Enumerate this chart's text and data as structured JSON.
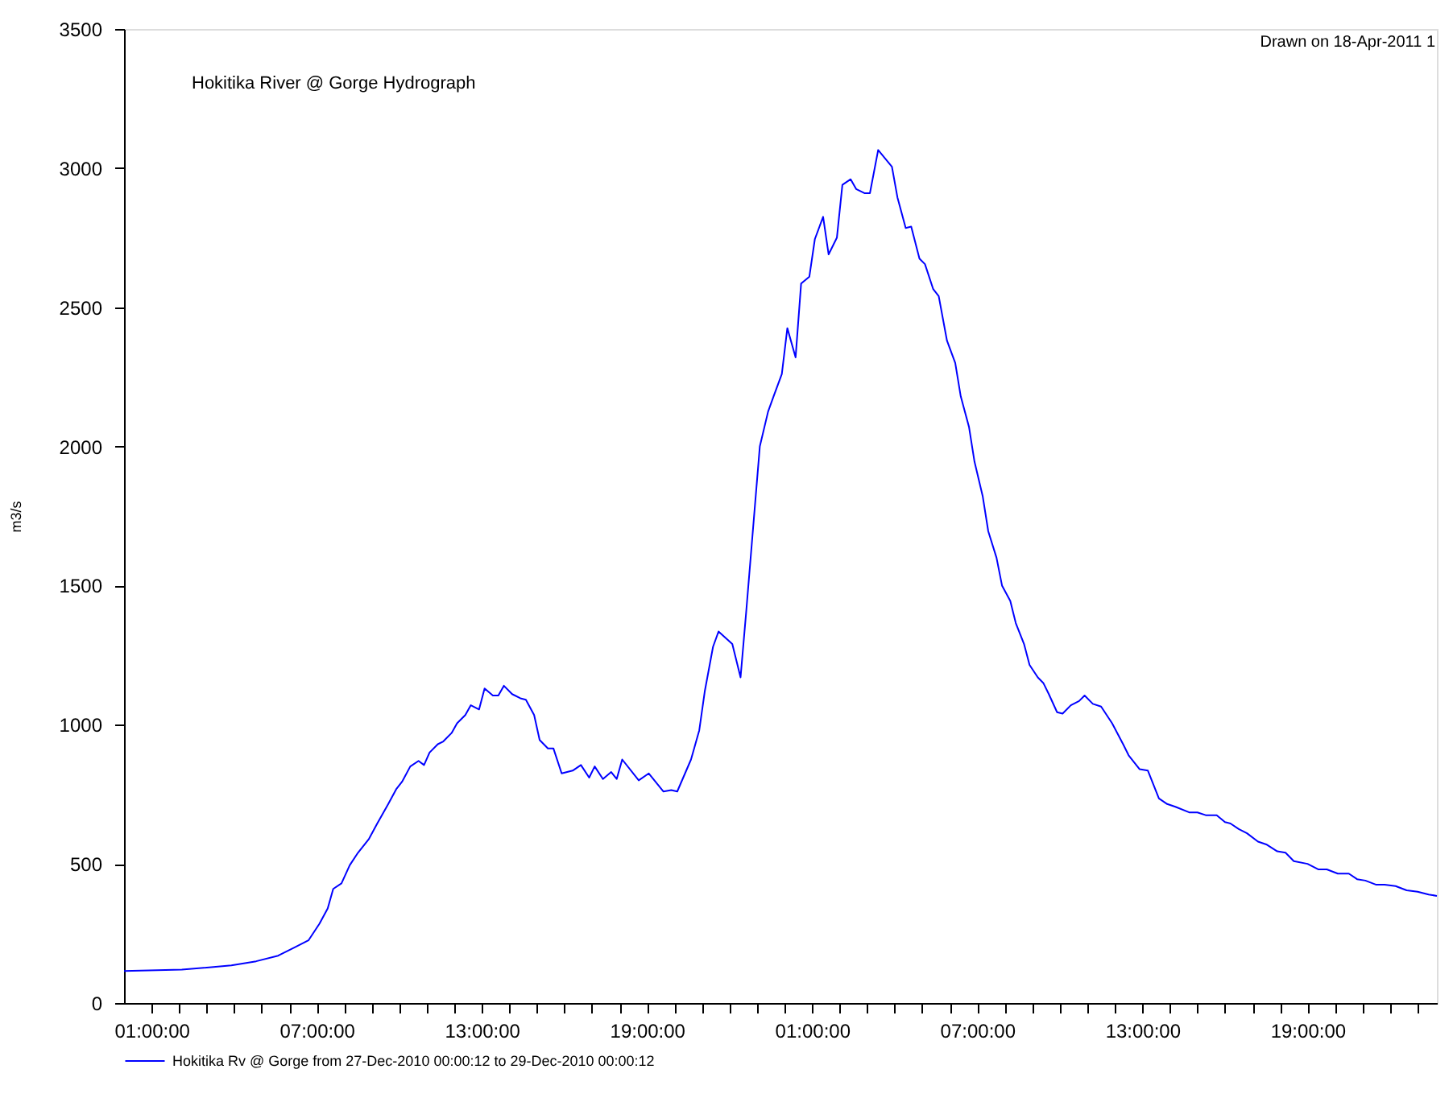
{
  "chart_data": {
    "type": "line",
    "title": "Hokitika River @ Gorge Hydrograph",
    "ylabel": "m3/s",
    "annotations": [
      "Drawn on 18-Apr-2011 1"
    ],
    "xlim": [
      "2010-12-27T00:00",
      "2010-12-28T23:42"
    ],
    "ylim": [
      0,
      3500
    ],
    "xticks": [
      {
        "value": "2010-12-27T01:00",
        "label": "01:00:00"
      },
      {
        "value": "2010-12-27T02:00",
        "label": null
      },
      {
        "value": "2010-12-27T03:00",
        "label": null
      },
      {
        "value": "2010-12-27T04:00",
        "label": null
      },
      {
        "value": "2010-12-27T05:00",
        "label": null
      },
      {
        "value": "2010-12-27T06:00",
        "label": null
      },
      {
        "value": "2010-12-27T07:00",
        "label": "07:00:00"
      },
      {
        "value": "2010-12-27T08:00",
        "label": null
      },
      {
        "value": "2010-12-27T09:00",
        "label": null
      },
      {
        "value": "2010-12-27T10:00",
        "label": null
      },
      {
        "value": "2010-12-27T11:00",
        "label": null
      },
      {
        "value": "2010-12-27T12:00",
        "label": null
      },
      {
        "value": "2010-12-27T13:00",
        "label": "13:00:00"
      },
      {
        "value": "2010-12-27T14:00",
        "label": null
      },
      {
        "value": "2010-12-27T15:00",
        "label": null
      },
      {
        "value": "2010-12-27T16:00",
        "label": null
      },
      {
        "value": "2010-12-27T17:00",
        "label": null
      },
      {
        "value": "2010-12-27T18:00",
        "label": null
      },
      {
        "value": "2010-12-27T19:00",
        "label": "19:00:00"
      },
      {
        "value": "2010-12-27T20:00",
        "label": null
      },
      {
        "value": "2010-12-27T21:00",
        "label": null
      },
      {
        "value": "2010-12-27T22:00",
        "label": null
      },
      {
        "value": "2010-12-27T23:00",
        "label": null
      },
      {
        "value": "2010-12-28T00:00",
        "label": null
      },
      {
        "value": "2010-12-28T01:00",
        "label": "01:00:00"
      },
      {
        "value": "2010-12-28T02:00",
        "label": null
      },
      {
        "value": "2010-12-28T03:00",
        "label": null
      },
      {
        "value": "2010-12-28T04:00",
        "label": null
      },
      {
        "value": "2010-12-28T05:00",
        "label": null
      },
      {
        "value": "2010-12-28T06:00",
        "label": null
      },
      {
        "value": "2010-12-28T07:00",
        "label": "07:00:00"
      },
      {
        "value": "2010-12-28T08:00",
        "label": null
      },
      {
        "value": "2010-12-28T09:00",
        "label": null
      },
      {
        "value": "2010-12-28T10:00",
        "label": null
      },
      {
        "value": "2010-12-28T11:00",
        "label": null
      },
      {
        "value": "2010-12-28T12:00",
        "label": null
      },
      {
        "value": "2010-12-28T13:00",
        "label": "13:00:00"
      },
      {
        "value": "2010-12-28T14:00",
        "label": null
      },
      {
        "value": "2010-12-28T15:00",
        "label": null
      },
      {
        "value": "2010-12-28T16:00",
        "label": null
      },
      {
        "value": "2010-12-28T17:00",
        "label": null
      },
      {
        "value": "2010-12-28T18:00",
        "label": null
      },
      {
        "value": "2010-12-28T19:00",
        "label": "19:00:00"
      },
      {
        "value": "2010-12-28T20:00",
        "label": null
      },
      {
        "value": "2010-12-28T21:00",
        "label": null
      },
      {
        "value": "2010-12-28T22:00",
        "label": null
      },
      {
        "value": "2010-12-28T23:00",
        "label": null
      }
    ],
    "yticks": [
      0,
      500,
      1000,
      1500,
      2000,
      2500,
      3000,
      3500
    ],
    "grid": false,
    "legend": "bottom",
    "marker": "none",
    "line_style": "solid",
    "series": [
      {
        "name": "Hokitika Rv @ Gorge from 27-Dec-2010 00:00:12 to 29-Dec-2010 00:00:12",
        "color": "#0000ff",
        "x": [
          "2010-12-27T00:00",
          "2010-12-27T02:06",
          "2010-12-27T03:54",
          "2010-12-27T04:48",
          "2010-12-27T05:36",
          "2010-12-27T06:12",
          "2010-12-27T06:42",
          "2010-12-27T07:06",
          "2010-12-27T07:24",
          "2010-12-27T07:36",
          "2010-12-27T07:54",
          "2010-12-27T08:12",
          "2010-12-27T08:30",
          "2010-12-27T08:54",
          "2010-12-27T09:12",
          "2010-12-27T09:36",
          "2010-12-27T09:54",
          "2010-12-27T10:06",
          "2010-12-27T10:24",
          "2010-12-27T10:42",
          "2010-12-27T10:54",
          "2010-12-27T11:06",
          "2010-12-27T11:24",
          "2010-12-27T11:36",
          "2010-12-27T11:54",
          "2010-12-27T12:06",
          "2010-12-27T12:24",
          "2010-12-27T12:36",
          "2010-12-27T12:54",
          "2010-12-27T13:06",
          "2010-12-27T13:24",
          "2010-12-27T13:36",
          "2010-12-27T13:48",
          "2010-12-27T14:06",
          "2010-12-27T14:24",
          "2010-12-27T14:36",
          "2010-12-27T14:54",
          "2010-12-27T15:06",
          "2010-12-27T15:24",
          "2010-12-27T15:36",
          "2010-12-27T15:54",
          "2010-12-27T16:18",
          "2010-12-27T16:36",
          "2010-12-27T16:54",
          "2010-12-27T17:06",
          "2010-12-27T17:24",
          "2010-12-27T17:42",
          "2010-12-27T17:54",
          "2010-12-27T18:06",
          "2010-12-27T18:42",
          "2010-12-27T19:04",
          "2010-12-27T19:36",
          "2010-12-27T19:53",
          "2010-12-27T20:06",
          "2010-12-27T20:36",
          "2010-12-27T20:54",
          "2010-12-27T21:06",
          "2010-12-27T21:24",
          "2010-12-27T21:36",
          "2010-12-27T22:06",
          "2010-12-27T22:24",
          "2010-12-27T22:36",
          "2010-12-27T22:54",
          "2010-12-27T23:06",
          "2010-12-27T23:24",
          "2010-12-27T23:36",
          "2010-12-27T23:54",
          "2010-12-28T00:06",
          "2010-12-28T00:24",
          "2010-12-28T00:36",
          "2010-12-28T00:54",
          "2010-12-28T01:06",
          "2010-12-28T01:24",
          "2010-12-28T01:36",
          "2010-12-28T01:54",
          "2010-12-28T02:06",
          "2010-12-28T02:24",
          "2010-12-28T02:36",
          "2010-12-28T02:54",
          "2010-12-28T03:06",
          "2010-12-28T03:24",
          "2010-12-28T03:54",
          "2010-12-28T04:06",
          "2010-12-28T04:24",
          "2010-12-28T04:36",
          "2010-12-28T04:54",
          "2010-12-28T05:06",
          "2010-12-28T05:24",
          "2010-12-28T05:36",
          "2010-12-28T05:54",
          "2010-12-28T06:12",
          "2010-12-28T06:24",
          "2010-12-28T06:42",
          "2010-12-28T06:54",
          "2010-12-28T07:12",
          "2010-12-28T07:24",
          "2010-12-28T07:42",
          "2010-12-28T07:54",
          "2010-12-28T08:12",
          "2010-12-28T08:24",
          "2010-12-28T08:42",
          "2010-12-28T08:54",
          "2010-12-28T09:12",
          "2010-12-28T09:24",
          "2010-12-28T09:36",
          "2010-12-28T09:54",
          "2010-12-28T10:06",
          "2010-12-28T10:24",
          "2010-12-28T10:42",
          "2010-12-28T10:54",
          "2010-12-28T11:12",
          "2010-12-28T11:30",
          "2010-12-28T11:54",
          "2010-12-28T12:18",
          "2010-12-28T12:30",
          "2010-12-28T12:54",
          "2010-12-28T13:12",
          "2010-12-28T13:36",
          "2010-12-28T13:54",
          "2010-12-28T14:12",
          "2010-12-28T14:42",
          "2010-12-28T15:00",
          "2010-12-28T15:18",
          "2010-12-28T15:42",
          "2010-12-28T16:00",
          "2010-12-28T16:12",
          "2010-12-28T16:30",
          "2010-12-28T16:48",
          "2010-12-28T17:12",
          "2010-12-28T17:30",
          "2010-12-28T17:54",
          "2010-12-28T18:12",
          "2010-12-28T18:30",
          "2010-12-28T19:00",
          "2010-12-28T19:24",
          "2010-12-28T19:42",
          "2010-12-28T20:06",
          "2010-12-28T20:30",
          "2010-12-28T20:48",
          "2010-12-28T21:06",
          "2010-12-28T21:30",
          "2010-12-28T21:48",
          "2010-12-28T22:12",
          "2010-12-28T22:36",
          "2010-12-28T23:00",
          "2010-12-28T23:24",
          "2010-12-28T23:42"
        ],
        "values": [
          115,
          120,
          135,
          150,
          170,
          200,
          225,
          285,
          340,
          410,
          430,
          495,
          540,
          590,
          645,
          715,
          770,
          795,
          850,
          870,
          855,
          900,
          930,
          940,
          970,
          1005,
          1035,
          1070,
          1055,
          1130,
          1105,
          1105,
          1140,
          1110,
          1095,
          1090,
          1035,
          945,
          915,
          915,
          825,
          835,
          855,
          810,
          850,
          805,
          830,
          805,
          875,
          800,
          825,
          760,
          765,
          760,
          875,
          980,
          1120,
          1280,
          1335,
          1290,
          1170,
          1400,
          1760,
          2000,
          2125,
          2180,
          2260,
          2425,
          2320,
          2585,
          2610,
          2745,
          2825,
          2690,
          2750,
          2940,
          2960,
          2925,
          2910,
          2910,
          3065,
          3005,
          2895,
          2785,
          2790,
          2675,
          2655,
          2565,
          2540,
          2380,
          2300,
          2180,
          2070,
          1945,
          1820,
          1695,
          1600,
          1500,
          1445,
          1365,
          1290,
          1215,
          1170,
          1150,
          1110,
          1045,
          1040,
          1070,
          1085,
          1105,
          1075,
          1065,
          1005,
          930,
          890,
          840,
          835,
          735,
          715,
          705,
          685,
          685,
          675,
          675,
          650,
          645,
          625,
          610,
          580,
          570,
          545,
          540,
          510,
          500,
          480,
          480,
          465,
          465,
          445,
          440,
          425,
          425,
          420,
          405,
          400,
          390,
          385
        ]
      }
    ]
  }
}
